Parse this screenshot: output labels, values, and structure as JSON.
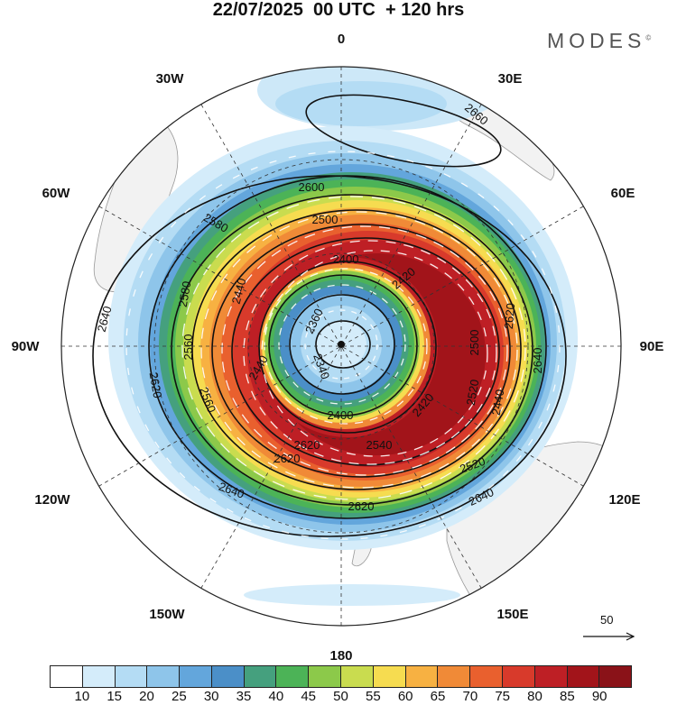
{
  "title": "22/07/2025  00 UTC  + 120 hrs",
  "logo": {
    "text": "MODES",
    "mark": "©"
  },
  "longitude_labels": [
    {
      "id": "0",
      "text": "0"
    },
    {
      "id": "30e",
      "text": "30E"
    },
    {
      "id": "60e",
      "text": "60E"
    },
    {
      "id": "90e",
      "text": "90E"
    },
    {
      "id": "120e",
      "text": "120E"
    },
    {
      "id": "150e",
      "text": "150E"
    },
    {
      "id": "180",
      "text": "180"
    },
    {
      "id": "150w",
      "text": "150W"
    },
    {
      "id": "120w",
      "text": "120W"
    },
    {
      "id": "90w",
      "text": "90W"
    },
    {
      "id": "60w",
      "text": "60W"
    },
    {
      "id": "30w",
      "text": "30W"
    }
  ],
  "contour_labels": [
    "2660",
    "2600",
    "2580",
    "2500",
    "2400",
    "2640",
    "2580",
    "2420",
    "2440",
    "2360",
    "2560",
    "2620",
    "2340",
    "2440",
    "2560",
    "2620",
    "2640",
    "2420",
    "2440",
    "2520",
    "2400",
    "2540",
    "2620",
    "2620",
    "2640",
    "2620",
    "2520",
    "2640",
    "2500"
  ],
  "reference_vector": {
    "label": "50"
  },
  "colorbar": {
    "ticks": [
      "10",
      "15",
      "20",
      "25",
      "30",
      "35",
      "40",
      "45",
      "50",
      "55",
      "60",
      "65",
      "70",
      "75",
      "80",
      "85",
      "90"
    ],
    "colors": [
      "#ffffff",
      "#d4ecfa",
      "#b4dcf4",
      "#8ec5ea",
      "#63a6dc",
      "#4b8fc8",
      "#45a07e",
      "#4cb357",
      "#8cc94a",
      "#c9dc4f",
      "#f6dc50",
      "#f7b142",
      "#f08a37",
      "#e9602e",
      "#d83a2b",
      "#be1f25",
      "#a2141a",
      "#8a1218"
    ]
  },
  "palette": {
    "land": "#f2f2f2",
    "coast": "#999999"
  }
}
